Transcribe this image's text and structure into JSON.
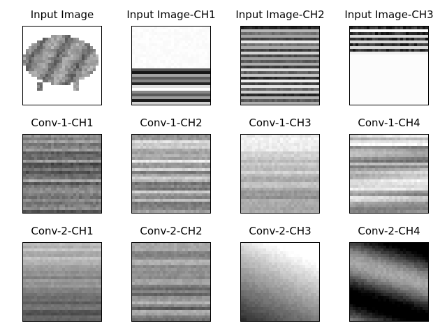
{
  "figure": {
    "panels": [
      {
        "title": "Input Image",
        "kind": "blob"
      },
      {
        "title": "Input Image-CH1",
        "kind": "ch1"
      },
      {
        "title": "Input Image-CH2",
        "kind": "ch2"
      },
      {
        "title": "Input Image-CH3",
        "kind": "ch3"
      },
      {
        "title": "Conv-1-CH1",
        "kind": "c1a"
      },
      {
        "title": "Conv-1-CH2",
        "kind": "c1b"
      },
      {
        "title": "Conv-1-CH3",
        "kind": "c1c"
      },
      {
        "title": "Conv-1-CH4",
        "kind": "c1d"
      },
      {
        "title": "Conv-2-CH1",
        "kind": "c2a"
      },
      {
        "title": "Conv-2-CH2",
        "kind": "c2b"
      },
      {
        "title": "Conv-2-CH3",
        "kind": "c2c"
      },
      {
        "title": "Conv-2-CH4",
        "kind": "c2d"
      }
    ]
  }
}
